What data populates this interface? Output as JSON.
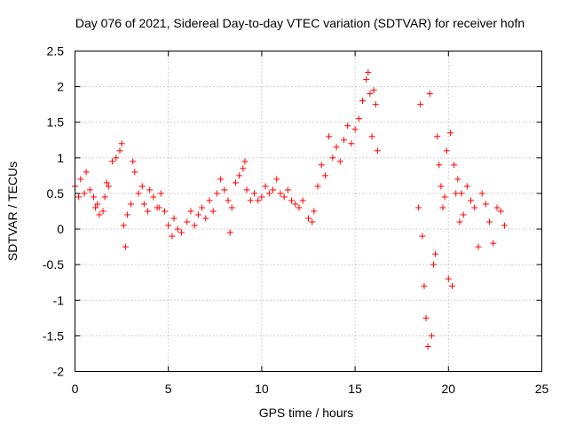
{
  "chart_data": {
    "type": "scatter",
    "title": "Day 076 of 2021, Sidereal Day-to-day VTEC variation (SDTVAR) for receiver hofn",
    "xlabel": "GPS time / hours",
    "ylabel": "SDTVAR / TECUs",
    "xlim": [
      0,
      25
    ],
    "ylim": [
      -2,
      2.5
    ],
    "xticks": [
      0,
      5,
      10,
      15,
      20,
      25
    ],
    "xtick_labels": [
      "0",
      "5",
      "10",
      "15",
      "20",
      "25"
    ],
    "yticks": [
      -2,
      -1.5,
      -1,
      -0.5,
      0,
      0.5,
      1,
      1.5,
      2,
      2.5
    ],
    "ytick_labels": [
      "-2",
      "-1.5",
      "-1",
      "-0.5",
      "0",
      "0.5",
      "1",
      "1.5",
      "2",
      "2.5"
    ],
    "grid": true,
    "marker": "plus",
    "color": "#ff0000",
    "series": [
      {
        "name": "SDTVAR",
        "points": [
          [
            0.0,
            0.6
          ],
          [
            0.2,
            0.45
          ],
          [
            0.3,
            0.7
          ],
          [
            0.5,
            0.5
          ],
          [
            0.6,
            0.8
          ],
          [
            0.8,
            0.55
          ],
          [
            1.0,
            0.45
          ],
          [
            1.1,
            0.3
          ],
          [
            1.2,
            0.35
          ],
          [
            1.3,
            0.2
          ],
          [
            1.5,
            0.25
          ],
          [
            1.6,
            0.45
          ],
          [
            1.7,
            0.65
          ],
          [
            1.8,
            0.6
          ],
          [
            2.0,
            0.95
          ],
          [
            2.2,
            1.0
          ],
          [
            2.4,
            1.1
          ],
          [
            2.5,
            1.2
          ],
          [
            2.6,
            0.05
          ],
          [
            2.7,
            -0.25
          ],
          [
            2.8,
            0.2
          ],
          [
            3.0,
            0.35
          ],
          [
            3.1,
            0.95
          ],
          [
            3.2,
            0.8
          ],
          [
            3.4,
            0.5
          ],
          [
            3.6,
            0.6
          ],
          [
            3.7,
            0.35
          ],
          [
            3.9,
            0.25
          ],
          [
            4.0,
            0.55
          ],
          [
            4.2,
            0.45
          ],
          [
            4.4,
            0.3
          ],
          [
            4.5,
            0.3
          ],
          [
            4.6,
            0.5
          ],
          [
            4.8,
            0.25
          ],
          [
            5.0,
            0.05
          ],
          [
            5.2,
            -0.1
          ],
          [
            5.3,
            0.15
          ],
          [
            5.5,
            0.0
          ],
          [
            5.7,
            -0.05
          ],
          [
            6.0,
            0.1
          ],
          [
            6.2,
            0.25
          ],
          [
            6.4,
            0.05
          ],
          [
            6.6,
            0.2
          ],
          [
            6.8,
            0.3
          ],
          [
            7.0,
            0.15
          ],
          [
            7.2,
            0.4
          ],
          [
            7.4,
            0.25
          ],
          [
            7.6,
            0.5
          ],
          [
            7.8,
            0.7
          ],
          [
            8.0,
            0.55
          ],
          [
            8.2,
            0.4
          ],
          [
            8.3,
            -0.05
          ],
          [
            8.4,
            0.3
          ],
          [
            8.6,
            0.65
          ],
          [
            8.8,
            0.75
          ],
          [
            9.0,
            0.85
          ],
          [
            9.1,
            0.95
          ],
          [
            9.2,
            0.55
          ],
          [
            9.4,
            0.4
          ],
          [
            9.6,
            0.5
          ],
          [
            9.8,
            0.4
          ],
          [
            10.0,
            0.45
          ],
          [
            10.2,
            0.6
          ],
          [
            10.4,
            0.5
          ],
          [
            10.6,
            0.55
          ],
          [
            10.8,
            0.7
          ],
          [
            11.0,
            0.5
          ],
          [
            11.2,
            0.45
          ],
          [
            11.4,
            0.55
          ],
          [
            11.6,
            0.4
          ],
          [
            11.8,
            0.35
          ],
          [
            12.0,
            0.3
          ],
          [
            12.2,
            0.4
          ],
          [
            12.5,
            0.15
          ],
          [
            12.7,
            0.1
          ],
          [
            12.8,
            0.25
          ],
          [
            13.0,
            0.6
          ],
          [
            13.2,
            0.9
          ],
          [
            13.4,
            0.75
          ],
          [
            13.6,
            1.3
          ],
          [
            13.8,
            1.0
          ],
          [
            14.0,
            1.15
          ],
          [
            14.2,
            0.95
          ],
          [
            14.4,
            1.25
          ],
          [
            14.6,
            1.45
          ],
          [
            14.8,
            1.2
          ],
          [
            15.0,
            1.4
          ],
          [
            15.2,
            1.55
          ],
          [
            15.4,
            1.8
          ],
          [
            15.6,
            2.1
          ],
          [
            15.7,
            2.2
          ],
          [
            15.8,
            1.9
          ],
          [
            16.0,
            1.95
          ],
          [
            16.1,
            1.75
          ],
          [
            15.9,
            1.3
          ],
          [
            16.2,
            1.1
          ],
          [
            18.4,
            0.3
          ],
          [
            18.5,
            1.75
          ],
          [
            18.6,
            -0.1
          ],
          [
            18.7,
            -0.8
          ],
          [
            18.8,
            -1.25
          ],
          [
            18.9,
            -1.65
          ],
          [
            19.0,
            1.9
          ],
          [
            19.1,
            -1.5
          ],
          [
            19.2,
            -0.5
          ],
          [
            19.3,
            -0.35
          ],
          [
            19.4,
            1.3
          ],
          [
            19.5,
            0.9
          ],
          [
            19.6,
            0.6
          ],
          [
            19.7,
            0.3
          ],
          [
            19.8,
            0.45
          ],
          [
            19.9,
            1.1
          ],
          [
            20.0,
            -0.7
          ],
          [
            20.1,
            1.35
          ],
          [
            20.2,
            -0.8
          ],
          [
            20.3,
            0.9
          ],
          [
            20.4,
            0.5
          ],
          [
            20.5,
            0.7
          ],
          [
            20.6,
            0.1
          ],
          [
            20.7,
            0.5
          ],
          [
            20.8,
            0.2
          ],
          [
            21.0,
            0.6
          ],
          [
            21.2,
            0.4
          ],
          [
            21.4,
            0.3
          ],
          [
            21.6,
            -0.25
          ],
          [
            21.8,
            0.5
          ],
          [
            22.0,
            0.35
          ],
          [
            22.2,
            0.1
          ],
          [
            22.4,
            -0.2
          ],
          [
            22.6,
            0.3
          ],
          [
            22.8,
            0.25
          ],
          [
            23.0,
            0.05
          ]
        ]
      }
    ]
  }
}
